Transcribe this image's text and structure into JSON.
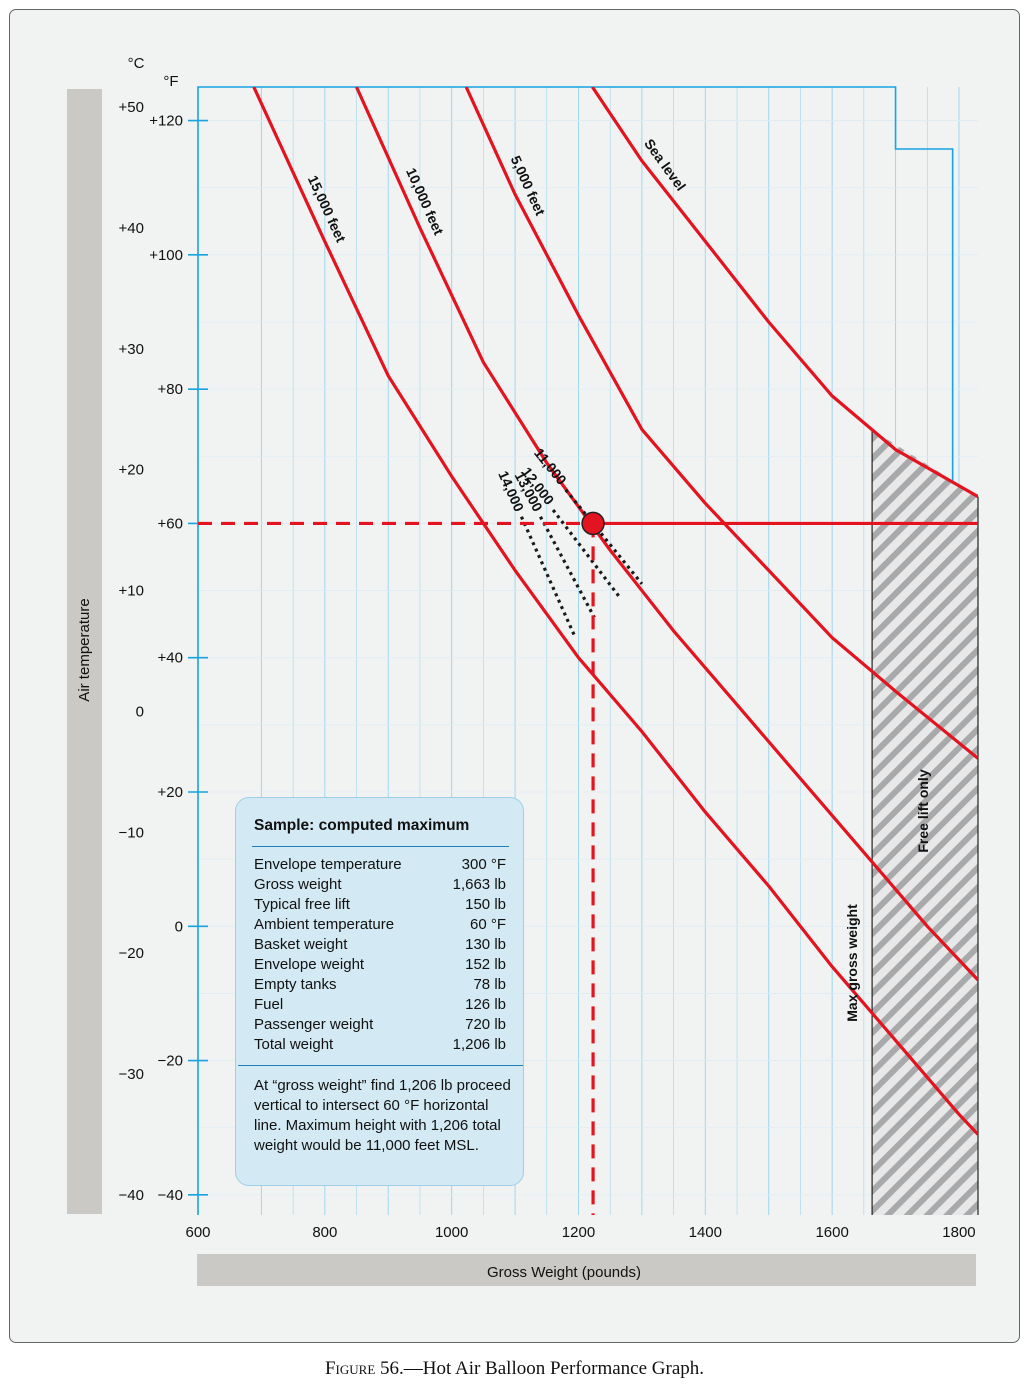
{
  "caption": {
    "prefix": "Figure",
    "text": " 56.—Hot Air Balloon Performance Graph."
  },
  "colors": {
    "curve": "#e3141f",
    "grid": "#9dd6ef",
    "axis": "#16a3df",
    "bar": "#cbc9c6",
    "hatch": "#a8a9ab"
  },
  "chart_data": {
    "type": "line",
    "title": "",
    "xlabel": "Gross Weight (pounds)",
    "ylabel": "Air temperature",
    "y_units": [
      "°C",
      "°F"
    ],
    "xlim": [
      600,
      1830
    ],
    "x_ticks": [
      "600",
      "800",
      "1000",
      "1200",
      "1400",
      "1600",
      "1800"
    ],
    "ylim_f": [
      -43,
      125
    ],
    "y_ticks_c": [
      "+50",
      "+40",
      "+30",
      "+20",
      "+10",
      "0",
      "−10",
      "−20",
      "−30",
      "−40"
    ],
    "y_ticks_f": [
      "+120",
      "+100",
      "+80",
      "+60",
      "+40",
      "+20",
      "0",
      "−20",
      "−40"
    ],
    "series": [
      {
        "name": "15,000 feet",
        "points": [
          [
            688,
            125
          ],
          [
            800,
            102
          ],
          [
            900,
            82
          ],
          [
            1000,
            67
          ],
          [
            1100,
            53
          ],
          [
            1200,
            40
          ],
          [
            1300,
            29
          ],
          [
            1400,
            17
          ],
          [
            1500,
            6
          ],
          [
            1600,
            -6
          ],
          [
            1700,
            -17
          ],
          [
            1800,
            -28
          ],
          [
            1830,
            -31
          ]
        ]
      },
      {
        "name": "10,000 feet",
        "points": [
          [
            850,
            125
          ],
          [
            950,
            104
          ],
          [
            1050,
            84
          ],
          [
            1150,
            69
          ],
          [
            1250,
            56
          ],
          [
            1350,
            44
          ],
          [
            1450,
            33
          ],
          [
            1550,
            22
          ],
          [
            1650,
            11
          ],
          [
            1750,
            0
          ],
          [
            1830,
            -8
          ]
        ]
      },
      {
        "name": "5,000 feet",
        "points": [
          [
            1023,
            125
          ],
          [
            1100,
            109
          ],
          [
            1200,
            91
          ],
          [
            1300,
            74
          ],
          [
            1400,
            63
          ],
          [
            1500,
            53
          ],
          [
            1600,
            43
          ],
          [
            1700,
            35
          ],
          [
            1830,
            25
          ]
        ]
      },
      {
        "name": "Sea level",
        "points": [
          [
            1222,
            125
          ],
          [
            1300,
            114
          ],
          [
            1400,
            102
          ],
          [
            1500,
            90
          ],
          [
            1600,
            79
          ],
          [
            1700,
            71
          ],
          [
            1830,
            64
          ]
        ]
      }
    ],
    "dotted_lines": [
      {
        "name": "11,000",
        "from": [
          1180,
          65
        ],
        "to": [
          1300,
          51
        ]
      },
      {
        "name": "12,000",
        "from": [
          1160,
          62
        ],
        "to": [
          1265,
          49
        ]
      },
      {
        "name": "13,000",
        "from": [
          1140,
          61
        ],
        "to": [
          1225,
          46
        ]
      },
      {
        "name": "14,000",
        "from": [
          1110,
          61
        ],
        "to": [
          1195,
          43
        ]
      }
    ],
    "sample_point": {
      "x": 1223,
      "y": 60
    },
    "reference_lines": [
      {
        "type": "horizontal",
        "y": 60,
        "dashed_to_x": 1223,
        "solid_from_x": 1223
      },
      {
        "type": "vertical",
        "x": 1223,
        "dashed": true
      }
    ],
    "max_gross_weight": 1663,
    "free_lift_region": [
      1663,
      1830
    ],
    "annotations": {
      "max_gross": "Max gross weight",
      "free_lift": "Free lift only"
    }
  },
  "sample": {
    "title": "Sample: computed maximum",
    "rows": [
      {
        "label": "Envelope temperature",
        "value": "300 °F"
      },
      {
        "label": "Gross weight",
        "value": "1,663 lb"
      },
      {
        "label": "Typical free lift",
        "value": "150 lb"
      },
      {
        "label": "Ambient temperature",
        "value": "60 °F"
      },
      {
        "label": "Basket weight",
        "value": "130 lb"
      },
      {
        "label": "Envelope weight",
        "value": "152 lb"
      },
      {
        "label": "Empty tanks",
        "value": "78 lb"
      },
      {
        "label": "Fuel",
        "value": "126 lb"
      },
      {
        "label": "Passenger weight",
        "value": "720 lb"
      },
      {
        "label": "Total weight",
        "value": "1,206 lb"
      }
    ],
    "note": "At “gross weight” find 1,206 lb proceed vertical to intersect 60 °F horizontal line. Maximum height with 1,206 total weight would be 11,000 feet MSL."
  }
}
